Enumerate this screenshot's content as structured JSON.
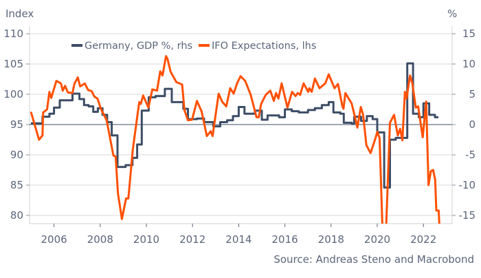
{
  "chart_data": {
    "type": "line",
    "title": "",
    "left_axis_label": "Index",
    "right_axis_label": "%",
    "source": "Source: Andreas Steno and Macrobond",
    "xlim": [
      2005,
      2023.3
    ],
    "ylim_left": [
      80,
      110
    ],
    "ylim_right": [
      -15,
      15
    ],
    "x_ticks": [
      "2006",
      "2008",
      "2010",
      "2012",
      "2014",
      "2016",
      "2018",
      "2020",
      "2022"
    ],
    "y_ticks_left": [
      "110",
      "105",
      "100",
      "95",
      "90",
      "85",
      "80"
    ],
    "y_ticks_right": [
      "15",
      "10",
      "5",
      "0",
      "-5",
      "-10",
      "-15"
    ],
    "grid": true,
    "legend_position": "top-left",
    "colors": {
      "gdp": "#3d4d66",
      "ifo": "#ff5000",
      "grid": "#d9d9d9",
      "zero": "#3d4d66"
    },
    "series": [
      {
        "name": "Germany, GDP %, rhs",
        "axis": "right",
        "style": "step",
        "x": [
          2005.0,
          2005.5,
          2005.8,
          2006.0,
          2006.25,
          2006.8,
          2007.1,
          2007.3,
          2007.5,
          2007.7,
          2007.9,
          2008.1,
          2008.3,
          2008.5,
          2008.75,
          2009.1,
          2009.4,
          2009.6,
          2009.8,
          2010.1,
          2010.4,
          2010.8,
          2011.1,
          2011.6,
          2011.8,
          2012.2,
          2012.5,
          2012.9,
          2013.2,
          2013.5,
          2013.75,
          2014.0,
          2014.25,
          2014.7,
          2015.0,
          2015.25,
          2015.75,
          2016.0,
          2016.3,
          2016.6,
          2017.0,
          2017.3,
          2017.6,
          2017.9,
          2018.1,
          2018.4,
          2018.55,
          2018.9,
          2019.0,
          2019.3,
          2019.55,
          2019.8,
          2020.0,
          2020.3,
          2020.55,
          2020.8,
          2021.0,
          2021.3,
          2021.55,
          2021.8,
          2022.0,
          2022.25,
          2022.5,
          2022.65
        ],
        "values": [
          0.2,
          1.3,
          1.8,
          2.8,
          4.0,
          5.1,
          4.2,
          3.2,
          3.0,
          2.1,
          2.7,
          1.6,
          0.4,
          -1.8,
          -7.0,
          -6.7,
          -5.5,
          -3.3,
          2.3,
          4.5,
          4.7,
          5.9,
          3.7,
          2.6,
          0.9,
          1.0,
          0.4,
          -0.3,
          0.4,
          0.7,
          1.4,
          2.9,
          1.8,
          2.3,
          0.8,
          1.5,
          1.2,
          2.5,
          2.2,
          2.0,
          2.4,
          2.7,
          3.2,
          3.7,
          2.0,
          1.8,
          0.3,
          0.1,
          1.3,
          0.6,
          1.4,
          0.9,
          -1.3,
          -10.4,
          -2.5,
          -2.2,
          -2.2,
          10.1,
          1.8,
          1.2,
          3.5,
          1.6,
          1.2,
          1.2
        ]
      },
      {
        "name": "IFO Expectations, lhs",
        "axis": "left",
        "style": "line",
        "x": [
          2005.0,
          2005.35,
          2005.5,
          2005.53,
          2005.7,
          2005.8,
          2005.88,
          2006.1,
          2006.3,
          2006.38,
          2006.48,
          2006.6,
          2006.8,
          2006.88,
          2007.03,
          2007.13,
          2007.33,
          2007.48,
          2007.63,
          2007.75,
          2007.88,
          2008.03,
          2008.28,
          2008.57,
          2008.67,
          2008.77,
          2008.94,
          2009.12,
          2009.22,
          2009.41,
          2009.69,
          2009.76,
          2009.86,
          2010.09,
          2010.26,
          2010.46,
          2010.6,
          2010.7,
          2010.85,
          2010.92,
          2011.05,
          2011.3,
          2011.55,
          2011.65,
          2011.8,
          2011.98,
          2012.19,
          2012.39,
          2012.62,
          2012.79,
          2012.87,
          2013.13,
          2013.28,
          2013.46,
          2013.63,
          2013.78,
          2013.93,
          2014.08,
          2014.28,
          2014.52,
          2014.77,
          2014.87,
          2014.97,
          2015.17,
          2015.37,
          2015.52,
          2015.62,
          2015.72,
          2015.86,
          2016.11,
          2016.31,
          2016.46,
          2016.56,
          2016.66,
          2016.81,
          2017.01,
          2017.06,
          2017.16,
          2017.3,
          2017.5,
          2017.75,
          2017.9,
          2018.15,
          2018.3,
          2018.49,
          2018.54,
          2018.62,
          2018.89,
          2019.04,
          2019.14,
          2019.29,
          2019.39,
          2019.53,
          2019.71,
          2019.93,
          2020.0,
          2020.1,
          2020.23,
          2020.38,
          2020.55,
          2020.73,
          2020.89,
          2020.99,
          2021.09,
          2021.2,
          2021.27,
          2021.42,
          2021.52,
          2021.67,
          2021.77,
          2021.97,
          2022.12,
          2022.22,
          2022.32,
          2022.42,
          2022.51,
          2022.56,
          2022.66,
          2022.69
        ],
        "values": [
          97.1,
          92.5,
          93.2,
          97.0,
          97.5,
          100.4,
          99.4,
          102.2,
          101.8,
          100.6,
          101.4,
          100.3,
          100.2,
          101.7,
          102.8,
          101.3,
          101.8,
          100.7,
          100.5,
          99.6,
          99.3,
          97.6,
          95.7,
          89.9,
          89.7,
          83.6,
          79.4,
          82.8,
          82.8,
          90.8,
          98.7,
          98.4,
          99.8,
          97.8,
          100.8,
          100.6,
          103.8,
          103.1,
          106.3,
          105.8,
          103.7,
          102.0,
          101.6,
          97.4,
          95.7,
          95.8,
          98.9,
          97.2,
          93.1,
          93.9,
          93.1,
          100.1,
          98.8,
          98.0,
          101.0,
          100.1,
          101.8,
          103.0,
          102.2,
          99.9,
          96.2,
          96.2,
          98.4,
          99.9,
          100.6,
          98.9,
          100.2,
          99.3,
          101.8,
          97.8,
          100.4,
          99.7,
          100.2,
          99.9,
          101.8,
          100.4,
          101.0,
          100.4,
          102.6,
          101.0,
          101.8,
          103.3,
          101.0,
          101.7,
          98.0,
          97.6,
          100.2,
          98.5,
          96.2,
          94.5,
          97.9,
          96.6,
          91.6,
          90.3,
          92.8,
          93.8,
          92.8,
          77.5,
          77.5,
          95.3,
          96.6,
          93.2,
          94.3,
          92.4,
          100.4,
          99.3,
          103.1,
          101.8,
          97.8,
          98.0,
          92.9,
          98.8,
          85.0,
          87.3,
          87.5,
          85.9,
          80.8,
          80.8,
          78.5
        ]
      }
    ]
  }
}
